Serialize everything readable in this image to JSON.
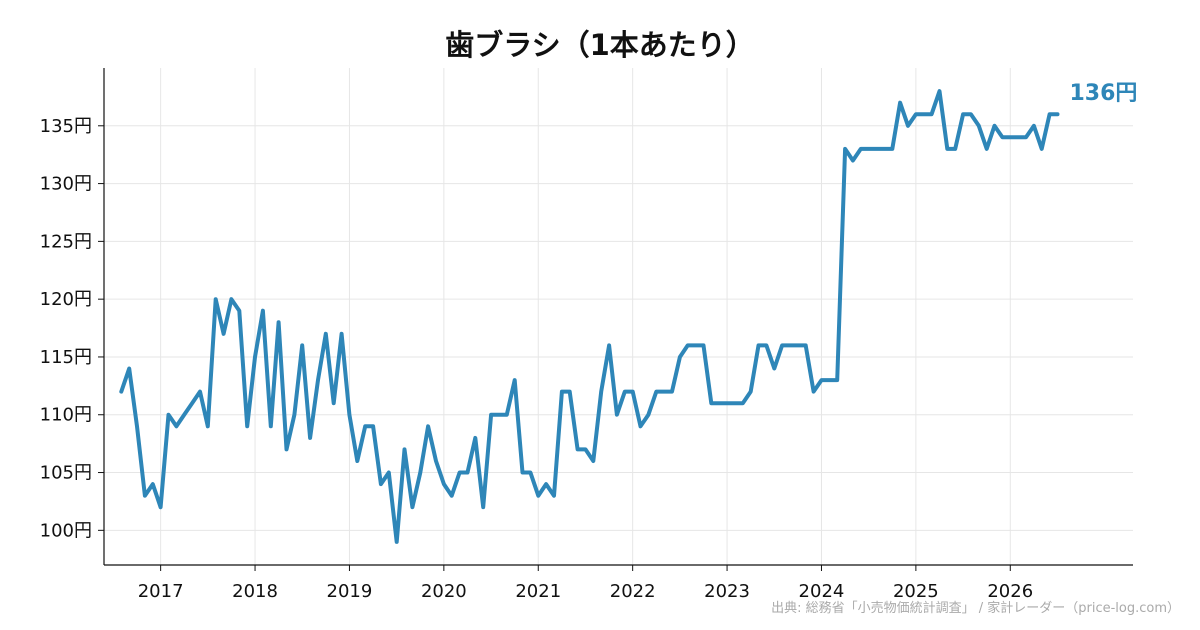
{
  "chart_data": {
    "type": "line",
    "title": "歯ブラシ（1本あたり）",
    "source": "出典: 総務省「小売物価統計調査」 / 家計レーダー（price-log.com）",
    "xlabel": "",
    "ylabel": "",
    "ylim": [
      97,
      140
    ],
    "y_ticks": [
      100,
      105,
      110,
      115,
      120,
      125,
      130,
      135
    ],
    "y_tick_labels": [
      "100円",
      "105円",
      "110円",
      "115円",
      "120円",
      "125円",
      "130円",
      "135円"
    ],
    "x_ticks": [
      2017,
      2018,
      2019,
      2020,
      2021,
      2022,
      2023,
      2024,
      2025,
      2026
    ],
    "x_tick_labels": [
      "2017",
      "2018",
      "2019",
      "2020",
      "2021",
      "2022",
      "2023",
      "2024",
      "2025",
      "2026"
    ],
    "grid": true,
    "line_color": "#2e86b8",
    "end_label": "136円",
    "series": [
      {
        "x": [
          "2016-08",
          "2016-09",
          "2016-10",
          "2016-11",
          "2016-12",
          "2017-01",
          "2017-02",
          "2017-03",
          "2017-04",
          "2017-05",
          "2017-06",
          "2017-07",
          "2017-08",
          "2017-09",
          "2017-10",
          "2017-11",
          "2017-12",
          "2018-01",
          "2018-02",
          "2018-03",
          "2018-04",
          "2018-05",
          "2018-06",
          "2018-07",
          "2018-08",
          "2018-09",
          "2018-10",
          "2018-11",
          "2018-12",
          "2019-01",
          "2019-02",
          "2019-03",
          "2019-04",
          "2019-05",
          "2019-06",
          "2019-07",
          "2019-08",
          "2019-09",
          "2019-10",
          "2019-11",
          "2019-12",
          "2020-01",
          "2020-02",
          "2020-03",
          "2020-04",
          "2020-05",
          "2020-06",
          "2020-07",
          "2020-08",
          "2020-09",
          "2020-10",
          "2020-11",
          "2020-12",
          "2021-01",
          "2021-02",
          "2021-03",
          "2021-04",
          "2021-05",
          "2021-06",
          "2021-07",
          "2021-08",
          "2021-09",
          "2021-10",
          "2021-11",
          "2021-12",
          "2022-01",
          "2022-02",
          "2022-03",
          "2022-04",
          "2022-05",
          "2022-06",
          "2022-07",
          "2022-08",
          "2022-09",
          "2022-10",
          "2022-11",
          "2022-12",
          "2023-01",
          "2023-02",
          "2023-03",
          "2023-04",
          "2023-05",
          "2023-06",
          "2023-07",
          "2023-08",
          "2023-09",
          "2023-10",
          "2023-11",
          "2023-12",
          "2024-01",
          "2024-02",
          "2024-03",
          "2024-04",
          "2024-05",
          "2024-06",
          "2024-07",
          "2024-08",
          "2024-09",
          "2024-10",
          "2024-11",
          "2024-12",
          "2025-01",
          "2025-02",
          "2025-03",
          "2025-04",
          "2025-05",
          "2025-06",
          "2025-07",
          "2025-08",
          "2025-09",
          "2025-10",
          "2025-11",
          "2025-12",
          "2026-01",
          "2026-02",
          "2026-03",
          "2026-04",
          "2026-05",
          "2026-06",
          "2026-07"
        ],
        "values": [
          112,
          114,
          109,
          103,
          104,
          102,
          110,
          109,
          110,
          111,
          112,
          109,
          120,
          117,
          120,
          119,
          109,
          115,
          119,
          109,
          118,
          107,
          110,
          116,
          108,
          113,
          117,
          111,
          117,
          110,
          106,
          109,
          109,
          104,
          105,
          99,
          107,
          102,
          105,
          109,
          106,
          104,
          103,
          105,
          105,
          108,
          102,
          110,
          110,
          110,
          113,
          105,
          105,
          103,
          104,
          103,
          112,
          112,
          107,
          107,
          106,
          112,
          116,
          110,
          112,
          112,
          109,
          110,
          112,
          112,
          112,
          115,
          116,
          116,
          116,
          111,
          111,
          111,
          111,
          111,
          112,
          116,
          116,
          114,
          116,
          116,
          116,
          116,
          112,
          113,
          113,
          113,
          133,
          132,
          133,
          133,
          133,
          133,
          133,
          137,
          135,
          136,
          136,
          136,
          138,
          133,
          133,
          136,
          136,
          135,
          133,
          135,
          134,
          134,
          134,
          134,
          135,
          133,
          136,
          136
        ]
      }
    ]
  }
}
